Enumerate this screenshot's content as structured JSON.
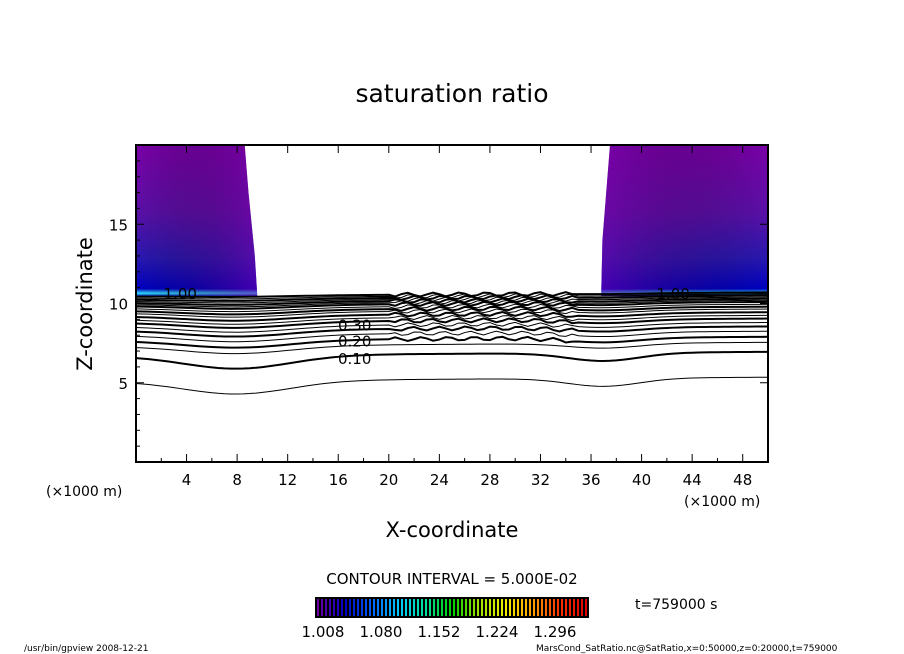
{
  "chart_data": {
    "type": "contour",
    "title": "saturation ratio",
    "xlabel": "X-coordinate",
    "ylabel": "Z-coordinate",
    "x_unit_left": "(×1000 m)",
    "x_unit_right": "(×1000 m)",
    "xlim": [
      0,
      50
    ],
    "ylim": [
      0,
      20
    ],
    "xticks": [
      4,
      8,
      12,
      16,
      20,
      24,
      28,
      32,
      36,
      40,
      44,
      48
    ],
    "yticks": [
      5,
      10,
      15
    ],
    "contour_interval_text": "CONTOUR INTERVAL = 5.000E-02",
    "time_text": "t=759000 s",
    "colorbar": {
      "ticks": [
        "1.008",
        "1.080",
        "1.152",
        "1.224",
        "1.296"
      ],
      "min": 1.008,
      "max": 1.316,
      "colors": [
        "#6a00a0",
        "#0000c8",
        "#0060ff",
        "#00c8ff",
        "#00e0a0",
        "#00d000",
        "#a0e000",
        "#f0f000",
        "#ffa000",
        "#ff3000",
        "#e00000"
      ]
    },
    "contour_labels": [
      {
        "text": "1.00",
        "x": 3.5,
        "z": 10.6
      },
      {
        "text": "1.00",
        "x": 42.5,
        "z": 10.6
      },
      {
        "text": "0.30",
        "x": 17.3,
        "z": 8.6
      },
      {
        "text": "0.20",
        "x": 17.3,
        "z": 7.6
      },
      {
        "text": "0.10",
        "x": 17.3,
        "z": 6.5
      }
    ],
    "contour_levels": [
      0.05,
      0.1,
      0.15,
      0.2,
      0.25,
      0.3,
      0.35,
      0.4,
      0.45,
      0.5,
      0.55,
      0.6,
      0.65,
      0.7,
      0.75,
      0.8,
      0.85,
      0.9,
      0.95,
      1.0
    ],
    "contour_base_z": [
      5.1,
      6.7,
      7.3,
      7.65,
      8.0,
      8.3,
      8.55,
      8.8,
      9.0,
      9.2,
      9.4,
      9.55,
      9.7,
      9.85,
      9.95,
      10.05,
      10.15,
      10.25,
      10.35,
      10.45
    ],
    "supersaturated_regions": [
      {
        "x_from": 0,
        "x_to_top": 8.6,
        "x_to_bottom": 9.6,
        "z_from": 10.45,
        "z_to": 20
      },
      {
        "x_from_top": 37.5,
        "x_from_bottom": 36.8,
        "x_to": 50,
        "z_from": 10.45,
        "z_to": 20
      }
    ]
  },
  "footer": {
    "left": "/usr/bin/gpview   2008-12-21",
    "right": "MarsCond_SatRatio.nc@SatRatio,x=0:50000,z=0:20000,t=759000"
  }
}
